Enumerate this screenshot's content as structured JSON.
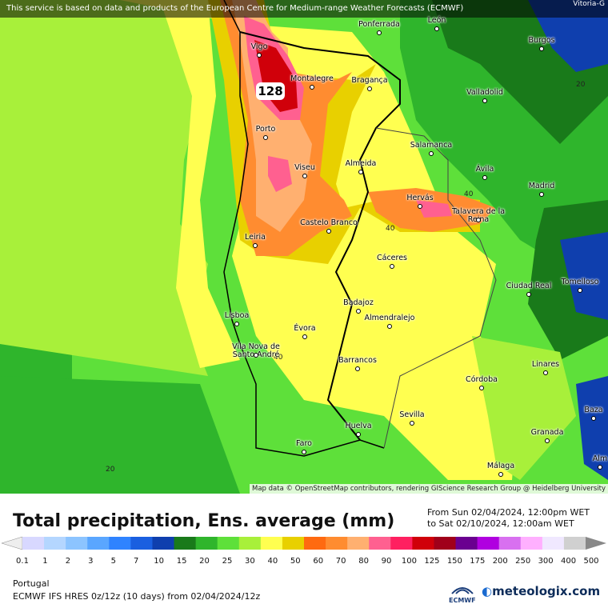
{
  "header": {
    "banner": "This service is based on data and products of the European Centre for Medium-range Weather Forecasts (ECMWF)",
    "corner_city": "Vitoria-G",
    "attribution": "Map data © OpenStreetMap contributors, rendering GIScience Research Group @ Heidelberg University"
  },
  "map": {
    "max_value_label": "128",
    "contour_labels": [
      "40",
      "40",
      "40",
      "20",
      "20"
    ],
    "cities": [
      {
        "name": "Vigo"
      },
      {
        "name": "Ponferrada"
      },
      {
        "name": "León"
      },
      {
        "name": "Burgos"
      },
      {
        "name": "Montalegre"
      },
      {
        "name": "Bragança"
      },
      {
        "name": "Valladolid"
      },
      {
        "name": "Porto"
      },
      {
        "name": "Salamanca"
      },
      {
        "name": "Viseu"
      },
      {
        "name": "Almeida"
      },
      {
        "name": "Ávila"
      },
      {
        "name": "Madrid"
      },
      {
        "name": "Hervás"
      },
      {
        "name": "Talavera de la Reina"
      },
      {
        "name": "Castelo Branco"
      },
      {
        "name": "Leiria"
      },
      {
        "name": "Cáceres"
      },
      {
        "name": "Ciudad Real"
      },
      {
        "name": "Tomelloso"
      },
      {
        "name": "Lisboa"
      },
      {
        "name": "Badajoz"
      },
      {
        "name": "Almendralejo"
      },
      {
        "name": "Évora"
      },
      {
        "name": "Vila Nova de Santo André"
      },
      {
        "name": "Barrancos"
      },
      {
        "name": "Linares"
      },
      {
        "name": "Córdoba"
      },
      {
        "name": "Huelva"
      },
      {
        "name": "Sevilla"
      },
      {
        "name": "Granada"
      },
      {
        "name": "Baza"
      },
      {
        "name": "Faro"
      },
      {
        "name": "Málaga"
      },
      {
        "name": "Alm"
      }
    ]
  },
  "legend": {
    "title": "Total precipitation, Ens. average (mm)",
    "period_from": "From Sun 02/04/2024, 12:00pm WET",
    "period_to": "to Sat 02/10/2024, 12:00am WET",
    "ticks": [
      "0.1",
      "1",
      "2",
      "3",
      "5",
      "7",
      "10",
      "15",
      "20",
      "25",
      "30",
      "40",
      "50",
      "60",
      "70",
      "80",
      "90",
      "100",
      "125",
      "150",
      "175",
      "200",
      "250",
      "300",
      "400",
      "500"
    ],
    "colors": [
      "#d8d8ff",
      "#b4d6ff",
      "#8cc4ff",
      "#5aa6ff",
      "#2f83ff",
      "#1a5fe0",
      "#0f3fae",
      "#197a1a",
      "#2fb52c",
      "#5ee03a",
      "#a8f03a",
      "#ffff50",
      "#e8d000",
      "#ff6a10",
      "#ff8c30",
      "#ffb070",
      "#ff6090",
      "#ff2060",
      "#d0000a",
      "#a0001a",
      "#6a0090",
      "#b000e0",
      "#d870f0",
      "#ffb0ff",
      "#f0e8ff",
      "#d0d0d0"
    ],
    "region": "Portugal",
    "model": "ECMWF IFS HRES 0z/12z (10 days) from 02/04/2024/12z",
    "ecmwf_logo": "ECMWF",
    "brand": "meteologix.com"
  }
}
